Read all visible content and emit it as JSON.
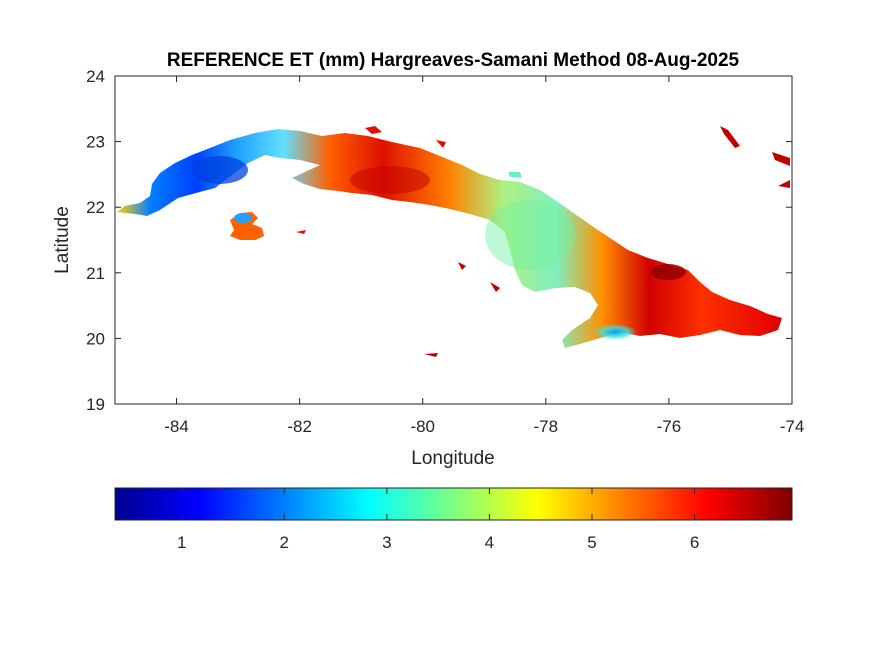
{
  "title": "REFERENCE ET (mm) Hargreaves-Samani Method  08-Aug-2025",
  "chart_data": {
    "type": "heatmap",
    "title": "REFERENCE ET (mm) Hargreaves-Samani Method  08-Aug-2025",
    "xlabel": "Longitude",
    "ylabel": "Latitude",
    "xlim": [
      -85,
      -74
    ],
    "ylim": [
      19,
      24
    ],
    "x_ticks": [
      "-84",
      "-82",
      "-80",
      "-78",
      "-76",
      "-74"
    ],
    "x_tick_values": [
      -84,
      -82,
      -80,
      -78,
      -76,
      -74
    ],
    "y_ticks": [
      "19",
      "20",
      "21",
      "22",
      "23",
      "24"
    ],
    "y_tick_values": [
      19,
      20,
      21,
      22,
      23,
      24
    ],
    "colormap": "jet",
    "colorbar": {
      "location": "below",
      "range": [
        0.35,
        6.95
      ],
      "ticks": [
        "1",
        "2",
        "3",
        "4",
        "5",
        "6"
      ],
      "tick_values": [
        1,
        2,
        3,
        4,
        5,
        6
      ]
    },
    "regions": [
      {
        "name": "",
        "lon": -84.3,
        "lat": 22.0,
        "value": 4.6
      },
      {
        "name": "",
        "lon": -83.7,
        "lat": 22.4,
        "value": 2.3
      },
      {
        "name": "",
        "lon": -83.0,
        "lat": 22.7,
        "value": 1.3
      },
      {
        "name": "",
        "lon": -82.4,
        "lat": 22.9,
        "value": 2.5
      },
      {
        "name": "",
        "lon": -81.8,
        "lat": 22.9,
        "value": 3.0
      },
      {
        "name": "",
        "lon": -81.0,
        "lat": 22.6,
        "value": 5.8
      },
      {
        "name": "",
        "lon": -80.3,
        "lat": 22.3,
        "value": 6.2
      },
      {
        "name": "",
        "lon": -79.5,
        "lat": 22.1,
        "value": 5.3
      },
      {
        "name": "",
        "lon": -78.8,
        "lat": 21.8,
        "value": 4.0
      },
      {
        "name": "",
        "lon": -78.0,
        "lat": 21.4,
        "value": 3.4
      },
      {
        "name": "",
        "lon": -77.3,
        "lat": 21.1,
        "value": 4.2
      },
      {
        "name": "",
        "lon": -76.3,
        "lat": 20.9,
        "value": 6.6
      },
      {
        "name": "",
        "lon": -75.5,
        "lat": 20.4,
        "value": 6.0
      },
      {
        "name": "",
        "lon": -77.0,
        "lat": 20.1,
        "value": 2.0
      },
      {
        "name": "",
        "lon": -82.8,
        "lat": 21.6,
        "value": 5.8
      }
    ]
  }
}
